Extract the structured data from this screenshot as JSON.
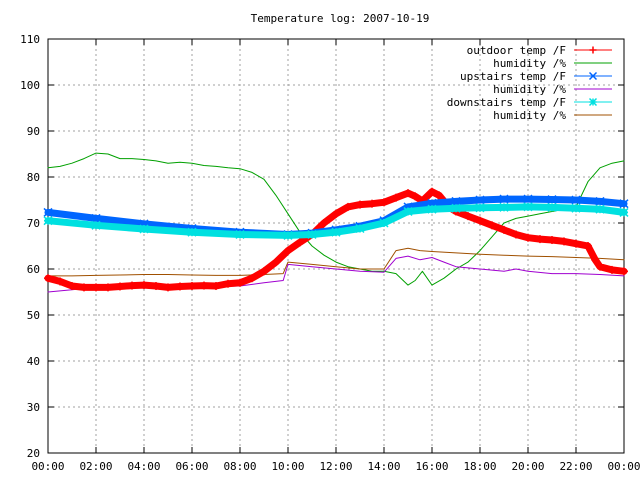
{
  "chart_data": {
    "type": "line",
    "title": "Temperature log: 2007-10-19",
    "xlabel": "",
    "ylabel": "",
    "x_unit": "hours",
    "xlim": [
      0,
      24
    ],
    "ylim": [
      20,
      110
    ],
    "grid": true,
    "legend_position": "top-right",
    "x_tick_labels": [
      "00:00",
      "02:00",
      "04:00",
      "06:00",
      "08:00",
      "10:00",
      "12:00",
      "14:00",
      "16:00",
      "18:00",
      "20:00",
      "22:00",
      "00:00"
    ],
    "y_tick_labels": [
      "20",
      "30",
      "40",
      "50",
      "60",
      "70",
      "80",
      "90",
      "100",
      "110"
    ],
    "series": [
      {
        "name": "outdoor temp /F",
        "color": "#ff0000",
        "marker": "plus",
        "points": [
          [
            0,
            58
          ],
          [
            0.5,
            57.3
          ],
          [
            1,
            56.3
          ],
          [
            1.5,
            56
          ],
          [
            2,
            56
          ],
          [
            2.5,
            56
          ],
          [
            3,
            56.2
          ],
          [
            3.5,
            56.4
          ],
          [
            4,
            56.5
          ],
          [
            4.5,
            56.3
          ],
          [
            5,
            56
          ],
          [
            5.5,
            56.2
          ],
          [
            6,
            56.3
          ],
          [
            6.5,
            56.4
          ],
          [
            7,
            56.3
          ],
          [
            7.5,
            56.8
          ],
          [
            8,
            57
          ],
          [
            8.5,
            58
          ],
          [
            9,
            59.5
          ],
          [
            9.5,
            61.5
          ],
          [
            10,
            64
          ],
          [
            10.5,
            65.8
          ],
          [
            11,
            67.5
          ],
          [
            11.5,
            70
          ],
          [
            12,
            72
          ],
          [
            12.5,
            73.5
          ],
          [
            13,
            74
          ],
          [
            13.5,
            74.2
          ],
          [
            14,
            74.5
          ],
          [
            14.5,
            75.5
          ],
          [
            15,
            76.5
          ],
          [
            15.3,
            75.8
          ],
          [
            15.6,
            74.8
          ],
          [
            16,
            76.8
          ],
          [
            16.3,
            76
          ],
          [
            16.7,
            73.5
          ],
          [
            17,
            72.5
          ],
          [
            17.5,
            71.5
          ],
          [
            18,
            70.5
          ],
          [
            18.5,
            69.5
          ],
          [
            19,
            68.5
          ],
          [
            19.5,
            67.5
          ],
          [
            20,
            66.8
          ],
          [
            20.5,
            66.5
          ],
          [
            21,
            66.3
          ],
          [
            21.5,
            66
          ],
          [
            22,
            65.5
          ],
          [
            22.5,
            65
          ],
          [
            22.8,
            62
          ],
          [
            23,
            60.5
          ],
          [
            23.5,
            59.8
          ],
          [
            24,
            59.5
          ]
        ]
      },
      {
        "name": "humidity /%",
        "color": "#00a000",
        "marker": "none",
        "points": [
          [
            0,
            82
          ],
          [
            0.5,
            82.3
          ],
          [
            1,
            83
          ],
          [
            1.5,
            84
          ],
          [
            2,
            85.2
          ],
          [
            2.5,
            85
          ],
          [
            3,
            84
          ],
          [
            3.5,
            84
          ],
          [
            4,
            83.8
          ],
          [
            4.5,
            83.5
          ],
          [
            5,
            83
          ],
          [
            5.5,
            83.2
          ],
          [
            6,
            83
          ],
          [
            6.5,
            82.5
          ],
          [
            7,
            82.3
          ],
          [
            7.5,
            82
          ],
          [
            8,
            81.8
          ],
          [
            8.5,
            81
          ],
          [
            9,
            79.5
          ],
          [
            9.5,
            76
          ],
          [
            10,
            72
          ],
          [
            10.5,
            68
          ],
          [
            11,
            65
          ],
          [
            11.5,
            63
          ],
          [
            12,
            61.5
          ],
          [
            12.5,
            60.5
          ],
          [
            13,
            60
          ],
          [
            13.5,
            59.5
          ],
          [
            14,
            59.5
          ],
          [
            14.5,
            59
          ],
          [
            15,
            56.5
          ],
          [
            15.3,
            57.5
          ],
          [
            15.6,
            59.5
          ],
          [
            16,
            56.5
          ],
          [
            16.5,
            58
          ],
          [
            17,
            60
          ],
          [
            17.5,
            61.5
          ],
          [
            18,
            64
          ],
          [
            18.5,
            67
          ],
          [
            19,
            70
          ],
          [
            19.5,
            71
          ],
          [
            20,
            71.5
          ],
          [
            20.5,
            72
          ],
          [
            21,
            72.5
          ],
          [
            21.5,
            73
          ],
          [
            22,
            73.5
          ],
          [
            22.5,
            79
          ],
          [
            23,
            82
          ],
          [
            23.5,
            83
          ],
          [
            24,
            83.5
          ]
        ]
      },
      {
        "name": "upstairs temp /F",
        "color": "#0066ff",
        "marker": "cross",
        "points": [
          [
            0,
            72.3
          ],
          [
            2,
            71
          ],
          [
            4,
            69.8
          ],
          [
            6,
            68.8
          ],
          [
            8,
            68
          ],
          [
            10,
            67.5
          ],
          [
            11,
            67.8
          ],
          [
            12,
            68.5
          ],
          [
            13,
            69.3
          ],
          [
            14,
            70.5
          ],
          [
            15,
            73.5
          ],
          [
            16,
            74.3
          ],
          [
            17,
            74.7
          ],
          [
            18,
            75
          ],
          [
            19,
            75.2
          ],
          [
            20,
            75.2
          ],
          [
            21,
            75.1
          ],
          [
            22,
            75
          ],
          [
            23,
            74.7
          ],
          [
            24,
            74.2
          ]
        ]
      },
      {
        "name": "humidity /%",
        "color": "#a000d0",
        "marker": "none",
        "points": [
          [
            0,
            55
          ],
          [
            1,
            55.5
          ],
          [
            2,
            56
          ],
          [
            3,
            56.2
          ],
          [
            4,
            56.3
          ],
          [
            5,
            56.2
          ],
          [
            6,
            56.2
          ],
          [
            7,
            56.2
          ],
          [
            8,
            56.3
          ],
          [
            9,
            57
          ],
          [
            9.8,
            57.5
          ],
          [
            10,
            61
          ],
          [
            11,
            60.5
          ],
          [
            12,
            60
          ],
          [
            13,
            59.5
          ],
          [
            14,
            59.3
          ],
          [
            14.5,
            62.3
          ],
          [
            15,
            62.8
          ],
          [
            15.5,
            62
          ],
          [
            16,
            62.5
          ],
          [
            16.5,
            61.5
          ],
          [
            17,
            60.5
          ],
          [
            18,
            60
          ],
          [
            19,
            59.5
          ],
          [
            19.5,
            60
          ],
          [
            20,
            59.5
          ],
          [
            21,
            59
          ],
          [
            22,
            59
          ],
          [
            23,
            58.8
          ],
          [
            24,
            58.5
          ]
        ]
      },
      {
        "name": "downstairs temp /F",
        "color": "#00e0e0",
        "marker": "star",
        "points": [
          [
            0,
            70.5
          ],
          [
            2,
            69.5
          ],
          [
            4,
            68.7
          ],
          [
            6,
            68
          ],
          [
            8,
            67.5
          ],
          [
            10,
            67.3
          ],
          [
            11,
            67.5
          ],
          [
            12,
            68
          ],
          [
            13,
            68.8
          ],
          [
            14,
            70
          ],
          [
            15,
            72.5
          ],
          [
            16,
            73
          ],
          [
            17,
            73.2
          ],
          [
            18,
            73.3
          ],
          [
            19,
            73.4
          ],
          [
            20,
            73.5
          ],
          [
            21,
            73.4
          ],
          [
            22,
            73.2
          ],
          [
            23,
            73
          ],
          [
            24,
            72.3
          ]
        ]
      },
      {
        "name": "humidity /%",
        "color": "#a05000",
        "marker": "none",
        "points": [
          [
            0,
            58.5
          ],
          [
            1,
            58.5
          ],
          [
            2,
            58.6
          ],
          [
            3,
            58.7
          ],
          [
            4,
            58.8
          ],
          [
            5,
            58.8
          ],
          [
            6,
            58.7
          ],
          [
            7,
            58.6
          ],
          [
            8,
            58.6
          ],
          [
            9,
            58.8
          ],
          [
            9.8,
            59
          ],
          [
            10,
            61.5
          ],
          [
            11,
            61
          ],
          [
            12,
            60.5
          ],
          [
            13,
            60
          ],
          [
            14,
            60
          ],
          [
            14.5,
            64
          ],
          [
            15,
            64.5
          ],
          [
            15.5,
            64
          ],
          [
            16,
            63.8
          ],
          [
            17,
            63.5
          ],
          [
            18,
            63.2
          ],
          [
            19,
            63
          ],
          [
            20,
            62.8
          ],
          [
            21,
            62.7
          ],
          [
            22,
            62.5
          ],
          [
            23,
            62.3
          ],
          [
            24,
            62
          ]
        ]
      }
    ]
  }
}
